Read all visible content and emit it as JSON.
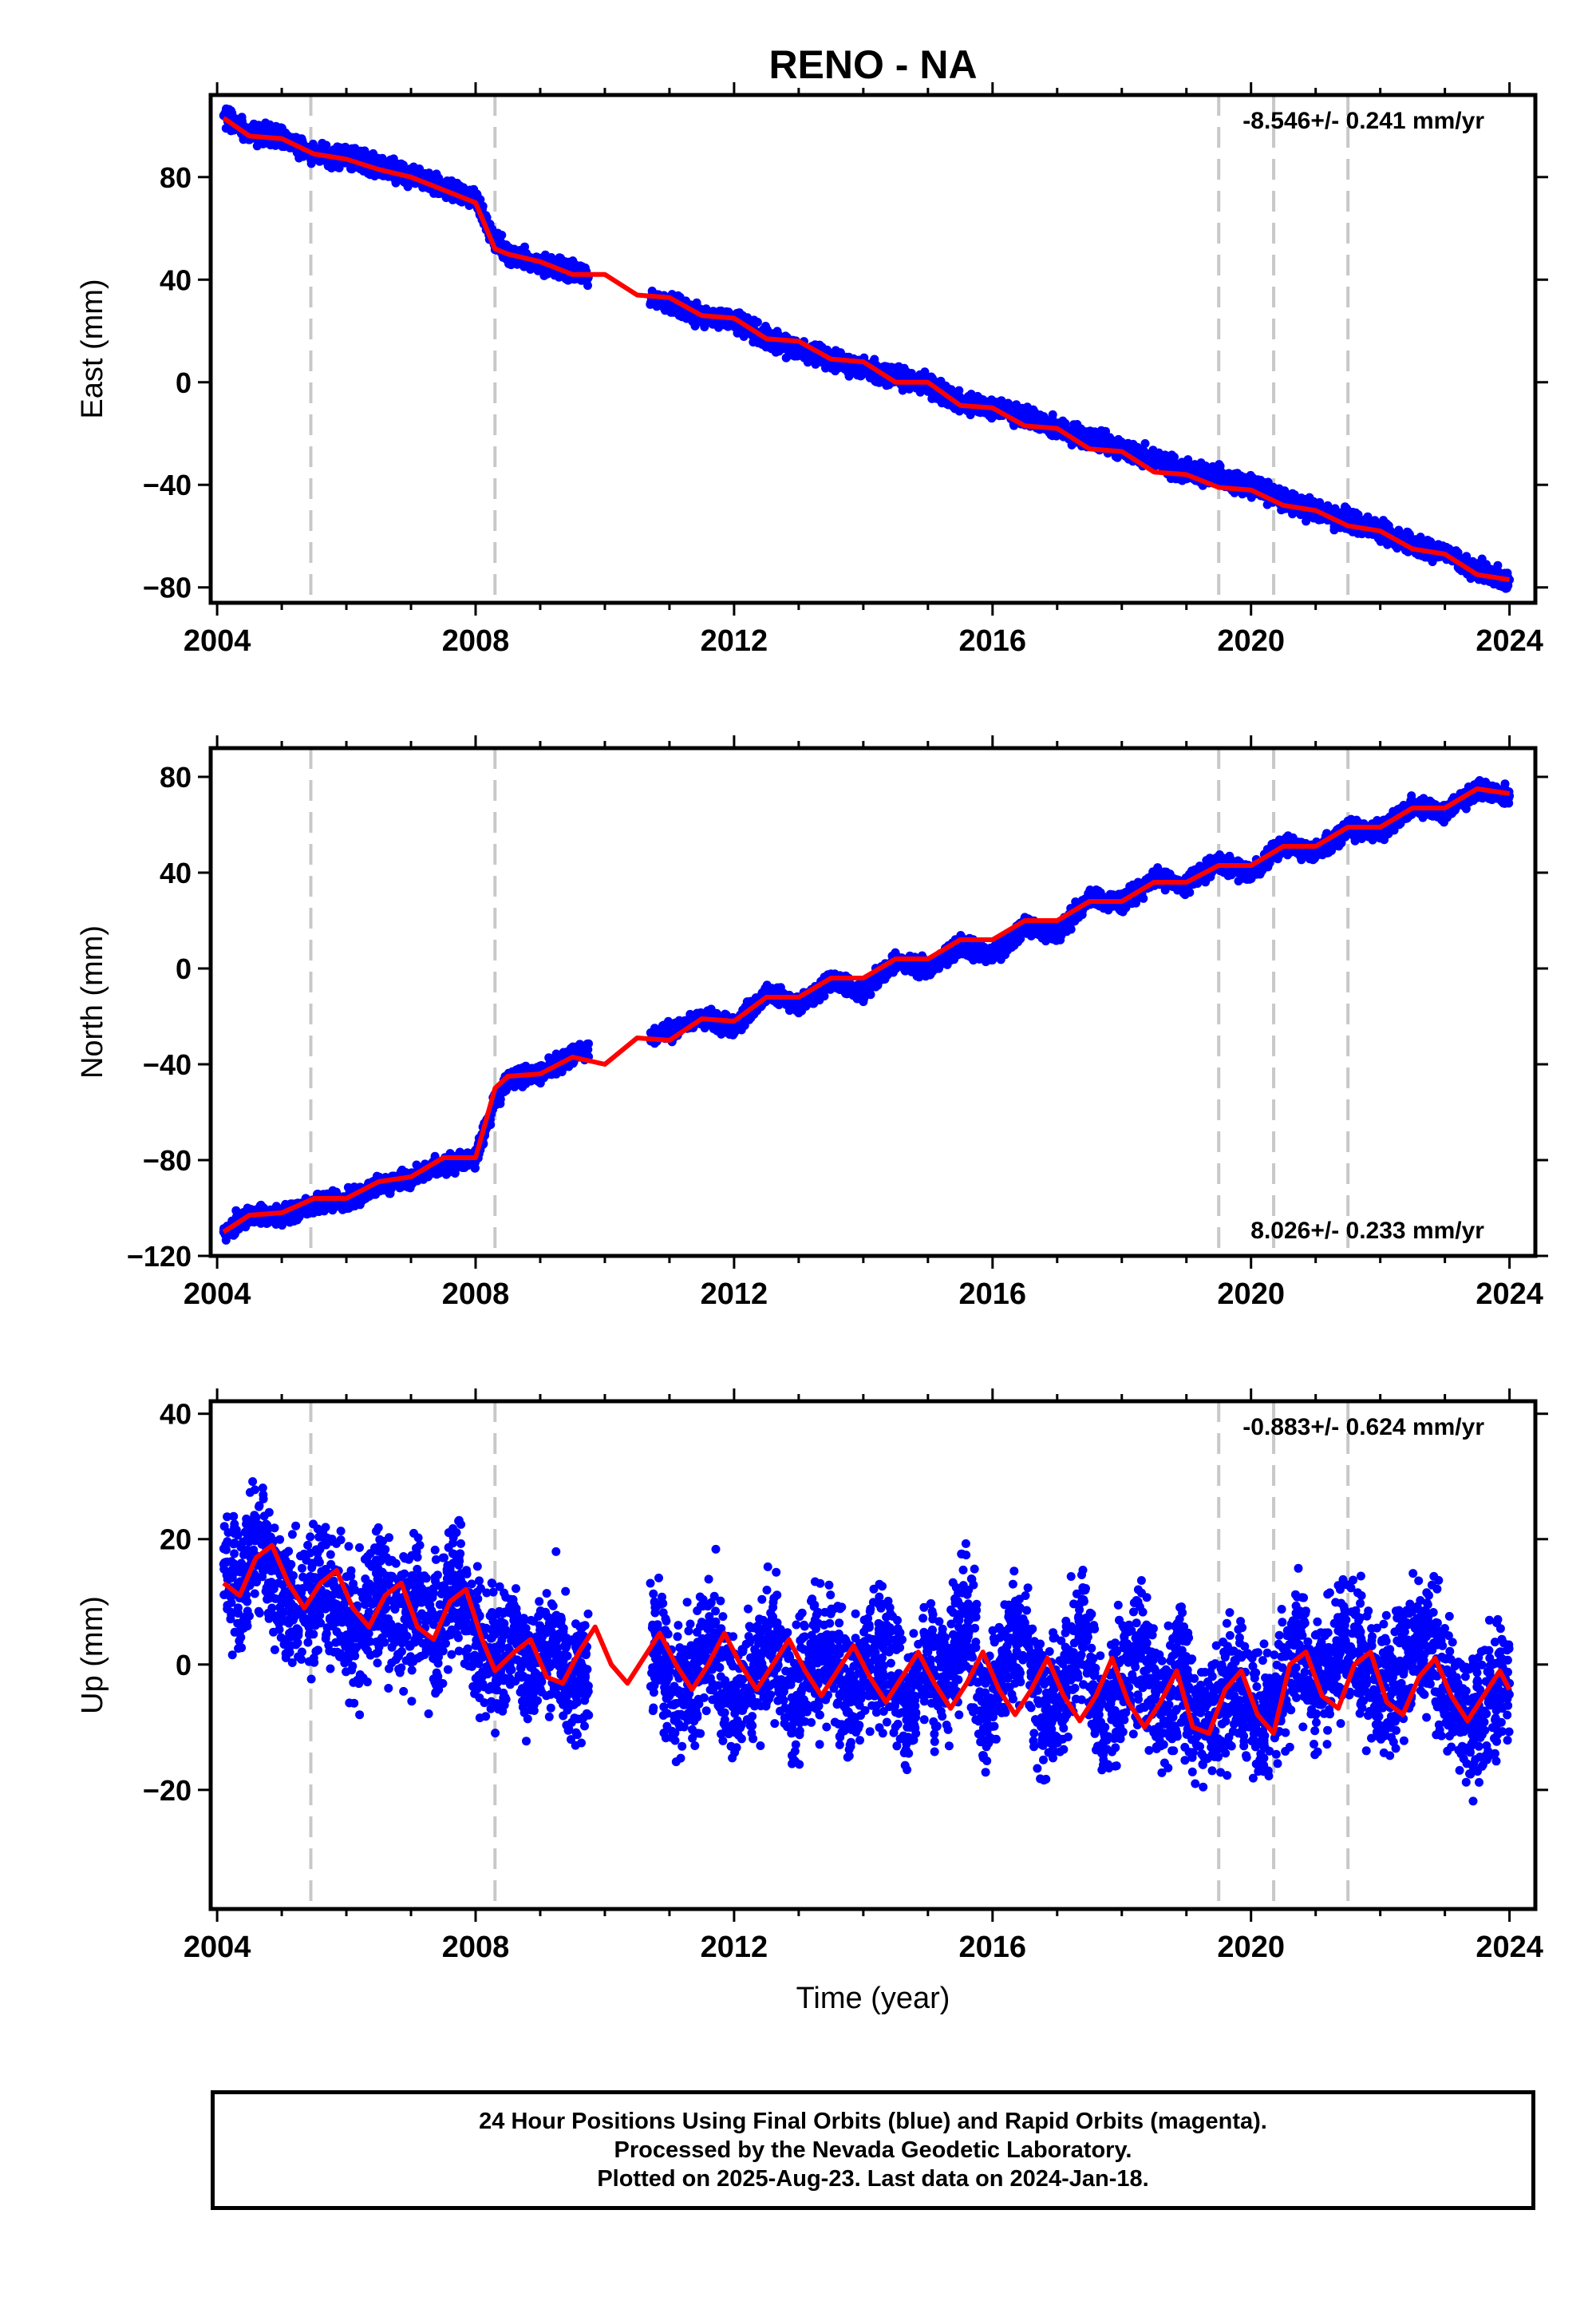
{
  "title": "RENO - NA",
  "xlabel": "Time (year)",
  "footer": {
    "line1": "24 Hour Positions Using Final Orbits (blue) and Rapid Orbits (magenta).",
    "line2": "Processed by the Nevada Geodetic Laboratory.",
    "line3": "Plotted on 2025-Aug-23. Last data on 2024-Jan-18."
  },
  "colors": {
    "data": "#0000ff",
    "model": "#ff0000",
    "steps": "#c8c8c8",
    "axis": "#000000"
  },
  "chart_data": [
    {
      "type": "scatter",
      "panel": "east",
      "ylabel": "East (mm)",
      "rate_label": "-8.546+/- 0.241 mm/yr",
      "rate_position": "top-right",
      "xlim": [
        2003.9,
        2024.4
      ],
      "ylim": [
        -86,
        112
      ],
      "xticks": [
        "2004",
        "2008",
        "2012",
        "2016",
        "2020",
        "2024"
      ],
      "yticks": [
        "−80",
        "−40",
        "0",
        "40",
        "80"
      ],
      "step_dates": [
        2005.45,
        2008.3,
        2019.5,
        2020.35,
        2021.5
      ],
      "series": [
        {
          "role": "observations",
          "x": [
            2004.1,
            2004.5,
            2005.0,
            2005.5,
            2006.0,
            2006.5,
            2007.0,
            2007.5,
            2008.0,
            2008.3,
            2008.5,
            2009.0,
            2009.5,
            2010.8,
            2011.5,
            2012.0,
            2012.5,
            2013.0,
            2013.5,
            2014.0,
            2014.5,
            2015.0,
            2015.5,
            2016.0,
            2016.5,
            2017.0,
            2017.5,
            2018.0,
            2018.5,
            2019.0,
            2019.5,
            2020.0,
            2020.5,
            2021.0,
            2021.5,
            2022.0,
            2022.5,
            2023.0,
            2023.5,
            2024.0
          ],
          "y": [
            104,
            97,
            96,
            89,
            88,
            84,
            80,
            76,
            71,
            55,
            50,
            46,
            43,
            32,
            26,
            24,
            17,
            13,
            9,
            5,
            2,
            -1,
            -8,
            -10,
            -13,
            -18,
            -22,
            -26,
            -30,
            -35,
            -37,
            -40,
            -46,
            -50,
            -54,
            -58,
            -64,
            -66,
            -74,
            -77
          ]
        },
        {
          "role": "model",
          "x": [
            2004.1,
            2004.5,
            2005.0,
            2005.5,
            2006.0,
            2006.5,
            2007.0,
            2007.5,
            2008.0,
            2008.3,
            2008.5,
            2009.0,
            2009.5,
            2010.0,
            2010.5,
            2011.0,
            2011.5,
            2012.0,
            2012.5,
            2013.0,
            2013.5,
            2014.0,
            2014.5,
            2015.0,
            2015.5,
            2016.0,
            2016.5,
            2017.0,
            2017.5,
            2018.0,
            2018.5,
            2019.0,
            2019.5,
            2020.0,
            2020.5,
            2021.0,
            2021.5,
            2022.0,
            2022.5,
            2023.0,
            2023.5,
            2024.0
          ],
          "y": [
            103,
            96,
            95,
            89,
            87,
            83,
            80,
            75,
            70,
            52,
            50,
            47,
            42,
            42,
            34,
            33,
            26,
            25,
            17,
            16,
            9,
            8,
            0,
            0,
            -9,
            -10,
            -17,
            -18,
            -26,
            -27,
            -35,
            -36,
            -41,
            -42,
            -48,
            -50,
            -56,
            -58,
            -65,
            -67,
            -75,
            -77
          ]
        }
      ]
    },
    {
      "type": "scatter",
      "panel": "north",
      "ylabel": "North (mm)",
      "rate_label": "8.026+/- 0.233 mm/yr",
      "rate_position": "bottom-right",
      "xlim": [
        2003.9,
        2024.4
      ],
      "ylim": [
        -120,
        92
      ],
      "xticks": [
        "2004",
        "2008",
        "2012",
        "2016",
        "2020",
        "2024"
      ],
      "yticks": [
        "−120",
        "−80",
        "−40",
        "0",
        "40",
        "80"
      ],
      "step_dates": [
        2005.45,
        2008.3,
        2019.5,
        2020.35,
        2021.5
      ],
      "series": [
        {
          "role": "observations",
          "x": [
            2004.1,
            2004.5,
            2005.0,
            2005.5,
            2006.0,
            2006.5,
            2007.0,
            2007.5,
            2008.0,
            2008.3,
            2008.5,
            2009.0,
            2009.5,
            2010.8,
            2011.5,
            2012.0,
            2012.5,
            2013.0,
            2013.5,
            2014.0,
            2014.5,
            2015.0,
            2015.5,
            2016.0,
            2016.5,
            2017.0,
            2017.5,
            2018.0,
            2018.5,
            2019.0,
            2019.5,
            2020.0,
            2020.5,
            2021.0,
            2021.5,
            2022.0,
            2022.5,
            2023.0,
            2023.5,
            2024.0
          ],
          "y": [
            -110,
            -103,
            -103,
            -98,
            -97,
            -90,
            -88,
            -82,
            -80,
            -55,
            -46,
            -44,
            -36,
            -28,
            -20,
            -25,
            -10,
            -15,
            -5,
            -10,
            3,
            0,
            10,
            5,
            18,
            14,
            30,
            27,
            38,
            35,
            44,
            40,
            52,
            48,
            58,
            57,
            68,
            65,
            75,
            72
          ]
        },
        {
          "role": "model",
          "x": [
            2004.1,
            2004.5,
            2005.0,
            2005.5,
            2006.0,
            2006.5,
            2007.0,
            2007.5,
            2008.0,
            2008.3,
            2008.5,
            2009.0,
            2009.5,
            2010.0,
            2010.5,
            2011.0,
            2011.5,
            2012.0,
            2012.5,
            2013.0,
            2013.5,
            2014.0,
            2014.5,
            2015.0,
            2015.5,
            2016.0,
            2016.5,
            2017.0,
            2017.5,
            2018.0,
            2018.5,
            2019.0,
            2019.5,
            2020.0,
            2020.5,
            2021.0,
            2021.5,
            2022.0,
            2022.5,
            2023.0,
            2023.5,
            2024.0
          ],
          "y": [
            -110,
            -103,
            -102,
            -96,
            -96,
            -89,
            -87,
            -79,
            -79,
            -50,
            -45,
            -44,
            -37,
            -40,
            -29,
            -30,
            -21,
            -22,
            -12,
            -12,
            -4,
            -4,
            4,
            4,
            12,
            12,
            20,
            20,
            28,
            28,
            36,
            36,
            43,
            43,
            51,
            51,
            59,
            59,
            67,
            67,
            75,
            73
          ]
        }
      ]
    },
    {
      "type": "scatter",
      "panel": "up",
      "ylabel": "Up (mm)",
      "rate_label": "-0.883+/- 0.624 mm/yr",
      "rate_position": "top-right",
      "xlim": [
        2003.9,
        2024.4
      ],
      "ylim": [
        -39,
        42
      ],
      "xticks": [
        "2004",
        "2008",
        "2012",
        "2016",
        "2020",
        "2024"
      ],
      "yticks": [
        "−20",
        "0",
        "20",
        "40"
      ],
      "step_dates": [
        2005.45,
        2008.3,
        2019.5,
        2020.35,
        2021.5
      ],
      "series": [
        {
          "role": "observations",
          "x": [
            2004.1,
            2004.4,
            2004.7,
            2005.0,
            2005.3,
            2005.6,
            2005.9,
            2006.2,
            2006.5,
            2006.8,
            2007.1,
            2007.4,
            2007.7,
            2008.0,
            2008.3,
            2008.6,
            2008.9,
            2009.2,
            2009.5,
            2010.8,
            2011.1,
            2011.4,
            2011.7,
            2012.0,
            2012.3,
            2012.6,
            2012.9,
            2013.2,
            2013.5,
            2013.8,
            2014.1,
            2014.4,
            2014.7,
            2015.0,
            2015.3,
            2015.6,
            2015.9,
            2016.2,
            2016.5,
            2016.8,
            2017.1,
            2017.4,
            2017.7,
            2018.0,
            2018.3,
            2018.6,
            2018.9,
            2019.2,
            2019.5,
            2019.8,
            2020.1,
            2020.4,
            2020.7,
            2021.0,
            2021.3,
            2021.6,
            2021.9,
            2022.2,
            2022.5,
            2022.8,
            2023.1,
            2023.4,
            2023.7,
            2024.0
          ],
          "y": [
            16,
            12,
            20,
            10,
            8,
            14,
            8,
            5,
            12,
            6,
            10,
            4,
            14,
            3,
            0,
            5,
            -2,
            4,
            -3,
            4,
            -4,
            -2,
            5,
            -6,
            -2,
            3,
            -7,
            0,
            3,
            -6,
            0,
            2,
            -8,
            2,
            -2,
            8,
            -8,
            2,
            5,
            -9,
            -3,
            5,
            -10,
            -2,
            3,
            -8,
            0,
            -10,
            -8,
            -2,
            -9,
            -6,
            4,
            -3,
            0,
            6,
            -4,
            -3,
            2,
            3,
            -6,
            -10,
            -5,
            -3
          ]
        },
        {
          "role": "model",
          "x": [
            2004.1,
            2004.35,
            2004.6,
            2004.85,
            2005.1,
            2005.35,
            2005.6,
            2005.85,
            2006.1,
            2006.35,
            2006.6,
            2006.85,
            2007.1,
            2007.35,
            2007.6,
            2007.85,
            2008.1,
            2008.3,
            2008.6,
            2008.85,
            2009.1,
            2009.35,
            2009.6,
            2009.85,
            2010.1,
            2010.35,
            2010.6,
            2010.85,
            2011.1,
            2011.35,
            2011.6,
            2011.85,
            2012.1,
            2012.35,
            2012.6,
            2012.85,
            2013.1,
            2013.35,
            2013.6,
            2013.85,
            2014.1,
            2014.35,
            2014.6,
            2014.85,
            2015.1,
            2015.35,
            2015.6,
            2015.85,
            2016.1,
            2016.35,
            2016.6,
            2016.85,
            2017.1,
            2017.35,
            2017.6,
            2017.85,
            2018.1,
            2018.35,
            2018.6,
            2018.85,
            2019.1,
            2019.35,
            2019.6,
            2019.85,
            2020.1,
            2020.35,
            2020.6,
            2020.85,
            2021.1,
            2021.35,
            2021.6,
            2021.85,
            2022.1,
            2022.35,
            2022.6,
            2022.85,
            2023.1,
            2023.35,
            2023.6,
            2023.85,
            2024.0
          ],
          "y": [
            13,
            11,
            17,
            19,
            13,
            9,
            13,
            15,
            9,
            6,
            11,
            13,
            6,
            4,
            10,
            12,
            4,
            -1,
            2,
            4,
            -2,
            -3,
            2,
            6,
            0,
            -3,
            1,
            5,
            0,
            -4,
            0,
            5,
            0,
            -4,
            0,
            4,
            -1,
            -5,
            -1,
            3,
            -2,
            -6,
            -2,
            2,
            -3,
            -7,
            -3,
            2,
            -4,
            -8,
            -4,
            1,
            -5,
            -9,
            -5,
            1,
            -6,
            -10,
            -6,
            -1,
            -10,
            -11,
            -4,
            -1,
            -8,
            -11,
            0,
            2,
            -5,
            -7,
            0,
            2,
            -6,
            -8,
            -2,
            1,
            -5,
            -9,
            -5,
            -1,
            -4
          ]
        }
      ]
    }
  ]
}
